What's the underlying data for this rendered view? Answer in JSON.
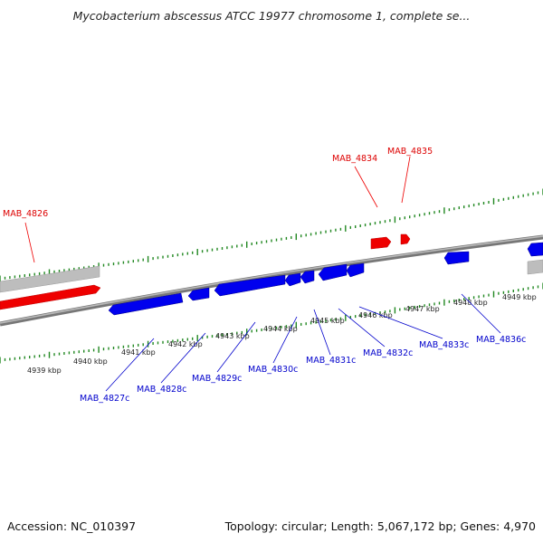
{
  "title": "Mycobacterium abscessus ATCC 19977 chromosome 1, complete se...",
  "footer": {
    "accession": "Accession: NC_010397",
    "summary": "Topology: circular; Length: 5,067,172 bp; Genes: 4,970"
  },
  "colors": {
    "forward_gene": "#ee0000",
    "reverse_gene": "#0000ee",
    "other_feature": "#bbbbbb",
    "tick": "#228822",
    "backbone": "#777777"
  },
  "scale_labels": [
    "4939 kbp",
    "4940 kbp",
    "4941 kbp",
    "4942 kbp",
    "4943 kbp",
    "4944 kbp",
    "4945 kbp",
    "4946 kbp",
    "4947 kbp",
    "4948 kbp",
    "4949 kbp"
  ],
  "gene_labels_forward": [
    "MAB_4826",
    "MAB_4834",
    "MAB_4835"
  ],
  "gene_labels_reverse": [
    "MAB_4827c",
    "MAB_4828c",
    "MAB_4829c",
    "MAB_4830c",
    "MAB_4831c",
    "MAB_4832c",
    "MAB_4833c",
    "MAB_4836c"
  ]
}
